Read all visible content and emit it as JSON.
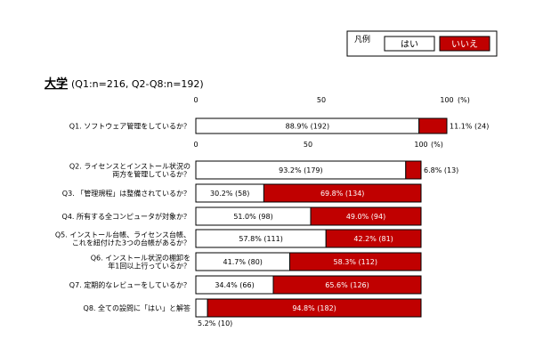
{
  "legend": {
    "title": "凡例",
    "items": [
      {
        "label": "はい",
        "color": "#ffffff"
      },
      {
        "label": "いいえ",
        "color": "#c00000"
      }
    ]
  },
  "heading": {
    "title": "大学",
    "sample": "(Q1:n=216, Q2-Q8:n=192)"
  },
  "colors": {
    "yes": "#ffffff",
    "no": "#c00000",
    "border": "#000000"
  },
  "chart_data": {
    "type": "bar",
    "orientation": "horizontal",
    "stacked": true,
    "xlim": [
      0,
      100
    ],
    "axes": [
      {
        "ticks": [
          "0",
          "50",
          "100"
        ],
        "unit": "(%)"
      },
      {
        "ticks": [
          "0",
          "50",
          "100"
        ],
        "unit": "(%)"
      }
    ],
    "categories": [
      "Q1. ソフトウェア管理をしているか？",
      "Q2. ライセンスとインストール状況の\n両方を管理しているか？",
      "Q3. 「管理規程」は整備されているか？",
      "Q4. 所有する全コンピュータが対象か？",
      "Q5. インストール台帳、ライセンス台帳、\nこれを紐付けた3つの台帳があるか？",
      "Q6. インストール状況の棚卸を\n年1回以上行っているか？",
      "Q7. 定期的なレビューをしているか？",
      "Q8. 全ての設問に「はい」と解答"
    ],
    "series": [
      {
        "name": "はい",
        "values": [
          88.9,
          93.2,
          30.2,
          51.0,
          57.8,
          41.7,
          34.4,
          5.2
        ],
        "labels": [
          "88.9% (192)",
          "93.2% (179)",
          "30.2% (58)",
          "51.0% (98)",
          "57.8% (111)",
          "41.7% (80)",
          "34.4% (66)",
          "5.2% (10)"
        ]
      },
      {
        "name": "いいえ",
        "values": [
          11.1,
          6.8,
          69.8,
          49.0,
          42.2,
          58.3,
          65.6,
          94.8
        ],
        "labels": [
          "11.1% (24)",
          "6.8% (13)",
          "69.8% (134)",
          "49.0% (94)",
          "42.2% (81)",
          "58.3% (112)",
          "65.6% (126)",
          "94.8% (182)"
        ]
      }
    ]
  }
}
